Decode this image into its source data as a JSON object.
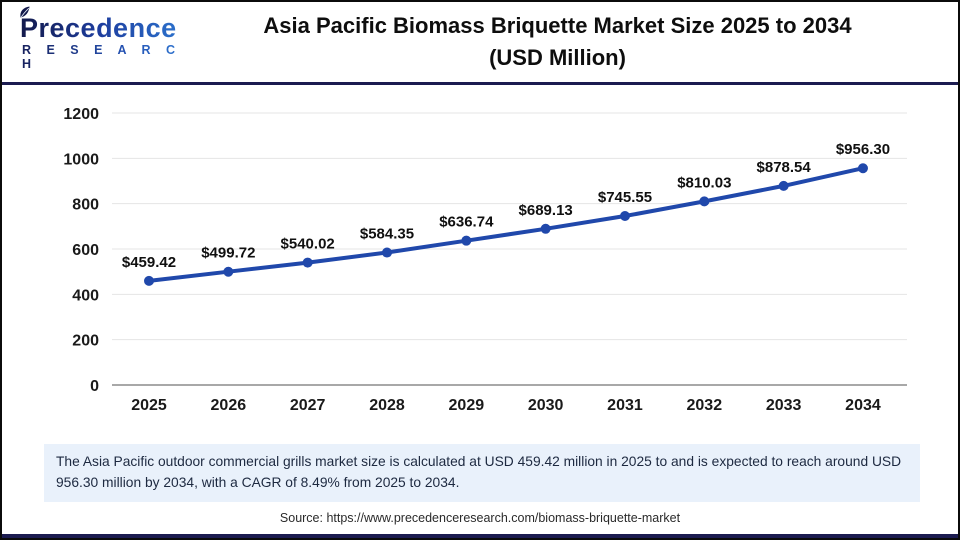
{
  "logo": {
    "brand": "Precedence",
    "brand_sub": "R E S E A R C H"
  },
  "header": {
    "title_line1": "Asia Pacific Biomass Briquette Market Size 2025 to 2034",
    "title_line2": "(USD Million)"
  },
  "chart_data": {
    "type": "line",
    "title": "Asia Pacific Biomass Briquette Market Size 2025 to 2034 (USD Million)",
    "x": [
      "2025",
      "2026",
      "2027",
      "2028",
      "2029",
      "2030",
      "2031",
      "2032",
      "2033",
      "2034"
    ],
    "series": [
      {
        "name": "Asia Pacific Biomass Briquette Market Size (USD Million)",
        "values": [
          459.42,
          499.72,
          540.02,
          584.35,
          636.74,
          689.13,
          745.55,
          810.03,
          878.54,
          956.3
        ]
      }
    ],
    "point_label_prefix": "$",
    "xlabel": "",
    "ylabel": "",
    "ylim": [
      0,
      1200
    ],
    "ytick_step": 200,
    "grid": "horizontal",
    "legend": "none",
    "line_color": "#2048ab",
    "marker": "circle"
  },
  "note": {
    "text": "The Asia Pacific outdoor commercial grills market size is calculated at USD 459.42 million in 2025 to and is expected to reach around USD 956.30 million by 2034, with a CAGR of 8.49% from 2025 to 2034."
  },
  "source": {
    "text": "Source: https://www.precedenceresearch.com/biomass-briquette-market"
  },
  "colors": {
    "line_blue": "#2048ab",
    "header_divider_navy": "#1b1b50",
    "note_background": "#e9f1fb",
    "gridline_gray": "#e4e4e4",
    "zero_axis_gray": "#a8a8a8"
  }
}
